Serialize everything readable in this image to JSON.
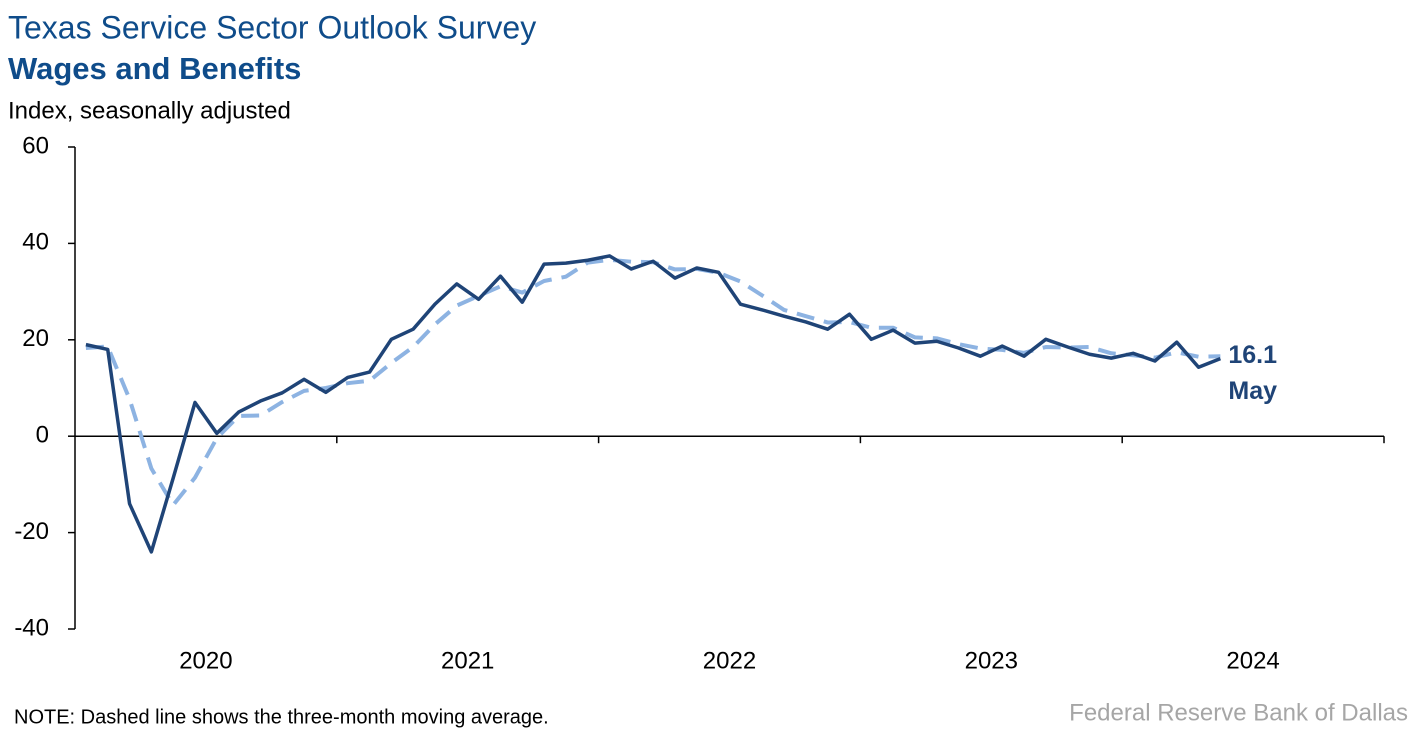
{
  "chart_data": {
    "type": "line",
    "title": "Texas Service Sector Outlook Survey",
    "subtitle": "Wages and Benefits",
    "y_label": "Index, seasonally adjusted",
    "note": "NOTE: Dashed line shows the three-month moving average.",
    "source": "Federal Reserve Bank of Dallas",
    "years": [
      "2020",
      "2021",
      "2022",
      "2023",
      "2024"
    ],
    "ylim": [
      -40,
      60
    ],
    "yticks": [
      -40,
      -20,
      0,
      20,
      40,
      60
    ],
    "series": [
      {
        "color": "#1f4477",
        "dash": false,
        "values": [
          19,
          18,
          -14,
          -24,
          -8.7,
          7,
          0.6,
          5,
          7.3,
          9,
          11.8,
          9.1,
          12.2,
          13.3,
          20.1,
          22.2,
          27.4,
          31.6,
          28.4,
          33.2,
          27.8,
          35.7,
          35.9,
          36.5,
          37.4,
          34.7,
          36.3,
          32.8,
          34.9,
          34,
          27.4,
          26.2,
          24.9,
          23.7,
          22.2,
          25.3,
          20.1,
          22,
          19.3,
          19.7,
          18.3,
          16.6,
          18.7,
          16.6,
          20.1,
          18.5,
          17,
          16.2,
          17.2,
          15.6,
          19.5,
          14.3,
          16.1
        ]
      },
      {
        "color": "#8db3e2",
        "dash": true,
        "values": [
          18.3,
          18.6,
          7.7,
          -6.7,
          -14.3,
          -8.6,
          -0.4,
          4.2,
          4.3,
          7.1,
          9.4,
          10,
          11,
          11.5,
          15.2,
          18.5,
          23.2,
          27.1,
          29.1,
          31.1,
          29.8,
          32.2,
          33.1,
          36,
          36.6,
          36.2,
          36.1,
          34.6,
          34.7,
          33.9,
          32.1,
          29.2,
          26.2,
          24.9,
          23.6,
          23.7,
          22.5,
          22.5,
          20.5,
          20.3,
          19.1,
          18.2,
          17.9,
          17.3,
          18.5,
          18.4,
          18.5,
          17.2,
          16.8,
          16.3,
          17.4,
          16.5,
          16.6
        ]
      }
    ],
    "annotation": {
      "value": "16.1",
      "month": "May"
    }
  }
}
